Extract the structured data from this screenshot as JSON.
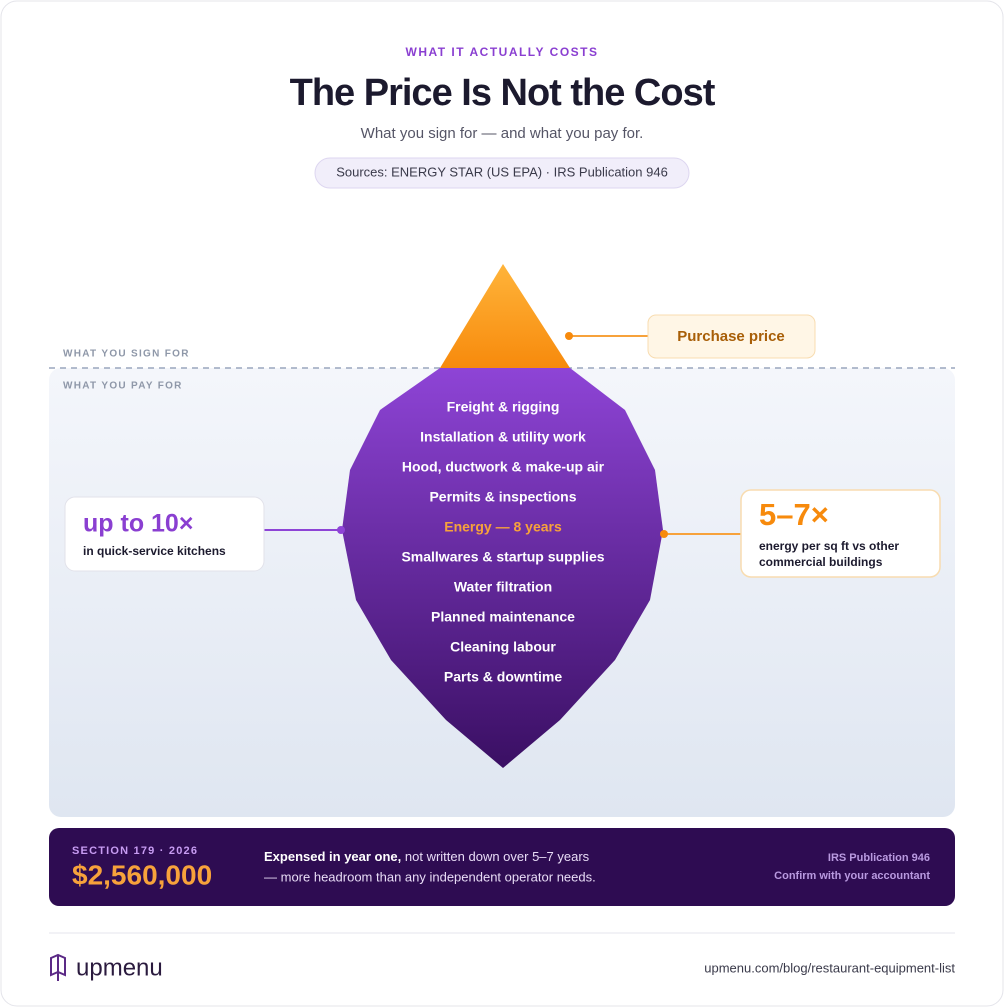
{
  "header": {
    "eyebrow": "WHAT IT ACTUALLY COSTS",
    "title": "The Price Is Not the Cost",
    "subtitle": "What you sign for — and what you pay for.",
    "sources": "Sources: ENERGY STAR (US EPA) · IRS Publication 946"
  },
  "diagram": {
    "above_label": "WHAT YOU SIGN FOR",
    "below_label": "WHAT YOU PAY FOR",
    "tip_callout": "Purchase price",
    "items": [
      {
        "label": "Freight & rigging",
        "color": "#ffffff"
      },
      {
        "label": "Installation & utility work",
        "color": "#ffffff"
      },
      {
        "label": "Hood, ductwork & make-up air",
        "color": "#ffffff"
      },
      {
        "label": "Permits & inspections",
        "color": "#ffffff"
      },
      {
        "label": "Energy — 8 years",
        "color": "#f7a23b"
      },
      {
        "label": "Smallwares & startup supplies",
        "color": "#ffffff"
      },
      {
        "label": "Water filtration",
        "color": "#ffffff"
      },
      {
        "label": "Planned maintenance",
        "color": "#ffffff"
      },
      {
        "label": "Cleaning labour",
        "color": "#ffffff"
      },
      {
        "label": "Parts & downtime",
        "color": "#ffffff"
      }
    ],
    "left_callout": {
      "big": "up to 10×",
      "text": "in quick-service kitchens"
    },
    "right_callout": {
      "big": "5–7×",
      "lines": [
        "energy per sq ft vs other",
        "commercial buildings"
      ]
    }
  },
  "banner": {
    "eyebrow": "SECTION 179 · 2026",
    "amount": "$2,560,000",
    "text_bold": "Expensed in year one,",
    "text_rest": " not written down over 5–7 years",
    "text_line2": "— more headroom than any independent operator needs.",
    "note_lines": [
      "IRS Publication 946",
      "Confirm with your accountant"
    ]
  },
  "footer": {
    "brand": "upmenu",
    "url": "upmenu.com/blog/restaurant-equipment-list"
  }
}
